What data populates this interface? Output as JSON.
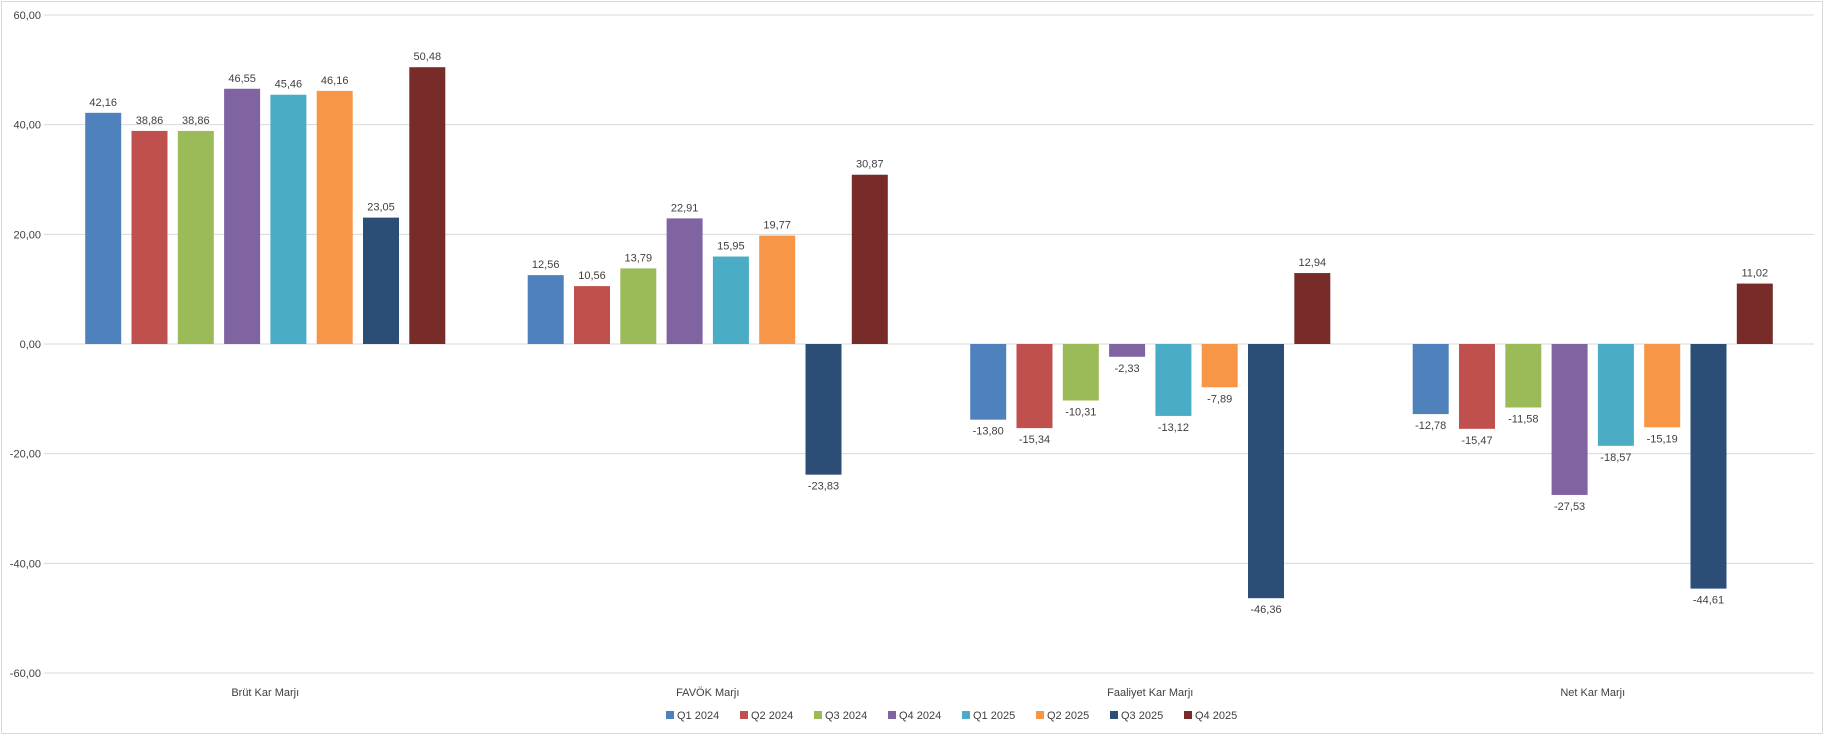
{
  "chart_data": {
    "type": "bar",
    "categories": [
      "Brüt Kar Marjı",
      "FAVÖK Marjı",
      "Faaliyet Kar Marjı",
      "Net Kar Marjı"
    ],
    "series": [
      {
        "name": "Q1 2024",
        "color": "#4f81bd",
        "values": [
          42.16,
          12.56,
          -13.8,
          -12.78
        ],
        "labels": [
          "42,16",
          "12,56",
          "-13,80",
          "-12,78"
        ]
      },
      {
        "name": "Q2 2024",
        "color": "#c0504d",
        "values": [
          38.86,
          10.56,
          -15.34,
          -15.47
        ],
        "labels": [
          "38,86",
          "10,56",
          "-15,34",
          "-15,47"
        ]
      },
      {
        "name": "Q3 2024",
        "color": "#9bbb59",
        "values": [
          38.86,
          13.79,
          -10.31,
          -11.58
        ],
        "labels": [
          "38,86",
          "13,79",
          "-10,31",
          "-11,58"
        ]
      },
      {
        "name": "Q4 2024",
        "color": "#8064a2",
        "values": [
          46.55,
          22.91,
          -2.33,
          -27.53
        ],
        "labels": [
          "46,55",
          "22,91",
          "-2,33",
          "-27,53"
        ]
      },
      {
        "name": "Q1 2025",
        "color": "#4bacc6",
        "values": [
          45.46,
          15.95,
          -13.12,
          -18.57
        ],
        "labels": [
          "45,46",
          "15,95",
          "-13,12",
          "-18,57"
        ]
      },
      {
        "name": "Q2 2025",
        "color": "#f79646",
        "values": [
          46.16,
          19.77,
          -7.89,
          -15.19
        ],
        "labels": [
          "46,16",
          "19,77",
          "-7,89",
          "-15,19"
        ]
      },
      {
        "name": "Q3 2025",
        "color": "#2c4d75",
        "values": [
          23.05,
          -23.83,
          -46.36,
          -44.61
        ],
        "labels": [
          "23,05",
          "-23,83",
          "-46,36",
          "-44,61"
        ]
      },
      {
        "name": "Q4 2025",
        "color": "#772c2a",
        "values": [
          50.48,
          30.87,
          12.94,
          11.02
        ],
        "labels": [
          "50,48",
          "30,87",
          "12,94",
          "11,02"
        ]
      }
    ],
    "ylim": [
      -60,
      60
    ],
    "yticks": [
      60,
      40,
      20,
      0,
      -20,
      -40,
      -60
    ],
    "ytick_labels": [
      "60,00",
      "40,00",
      "20,00",
      "0,00",
      "-20,00",
      "-40,00",
      "-60,00"
    ],
    "grid": true,
    "legend": "bottom"
  }
}
